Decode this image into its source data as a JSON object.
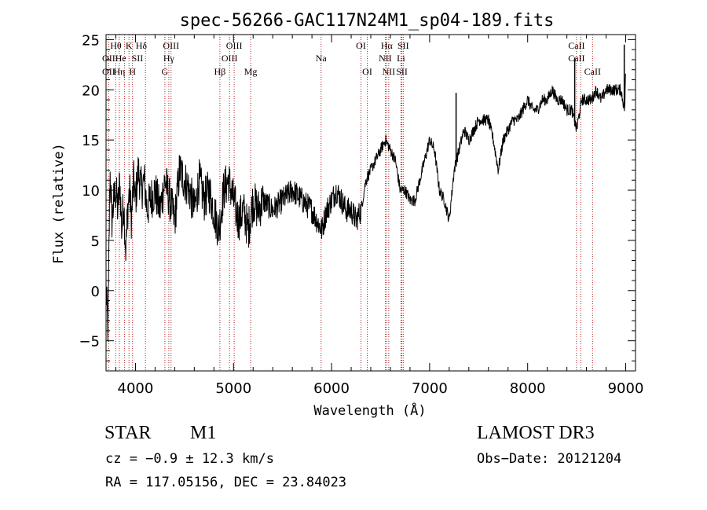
{
  "chart_data": {
    "type": "line",
    "title": "spec-56266-GAC117N24M1_sp04-189.fits",
    "xlabel": "Wavelength (Å)",
    "ylabel": "Flux (relative)",
    "xlim": [
      3700,
      9100
    ],
    "ylim": [
      -8,
      25.5
    ],
    "xticks": [
      4000,
      5000,
      6000,
      7000,
      8000,
      9000
    ],
    "yticks": [
      -5,
      0,
      5,
      10,
      15,
      20,
      25
    ],
    "grid": false,
    "series": [
      {
        "x": [
          3700,
          3720,
          3740,
          3760,
          3780,
          3800,
          3820,
          3840,
          3860,
          3880,
          3900,
          3920,
          3940,
          3960,
          3980,
          4000,
          4030,
          4060,
          4090,
          4120,
          4150,
          4200,
          4250,
          4300,
          4350,
          4400,
          4450,
          4500,
          4550,
          4600,
          4650,
          4700,
          4750,
          4800,
          4850,
          4900,
          4950,
          5000,
          5050,
          5100,
          5150,
          5200,
          5250,
          5300,
          5400,
          5500,
          5600,
          5700,
          5800,
          5850,
          5900,
          5950,
          6000,
          6050,
          6100,
          6150,
          6200,
          6250,
          6300,
          6350,
          6400,
          6450,
          6500,
          6550,
          6600,
          6650,
          6700,
          6750,
          6800,
          6850,
          6900,
          6950,
          7000,
          7050,
          7100,
          7150,
          7200,
          7250,
          7300,
          7350,
          7400,
          7450,
          7500,
          7550,
          7600,
          7650,
          7700,
          7750,
          7800,
          7850,
          7900,
          7950,
          8000,
          8050,
          8100,
          8150,
          8200,
          8250,
          8300,
          8350,
          8400,
          8450,
          8500,
          8550,
          8600,
          8650,
          8700,
          8750,
          8800,
          8850,
          8900,
          8950,
          8990,
          9000
        ],
        "y": [
          0,
          -4,
          12,
          7,
          9,
          10,
          8,
          11,
          6,
          9,
          4,
          8,
          10,
          7,
          11,
          9,
          12,
          10,
          11,
          8,
          9,
          10,
          8,
          11,
          9,
          7,
          12,
          11,
          10,
          8,
          11,
          9,
          10,
          8,
          6,
          10,
          11,
          9,
          7,
          8,
          6,
          9,
          8,
          9,
          8,
          9,
          10,
          9,
          8,
          7,
          6,
          8,
          9,
          10,
          9,
          8,
          8,
          7,
          8,
          11,
          12,
          13,
          14,
          15,
          14,
          13,
          10,
          10,
          9,
          9,
          11,
          13,
          15,
          14,
          10,
          9,
          7,
          12,
          14,
          16,
          15,
          16,
          17,
          17,
          17,
          15,
          12,
          15,
          16,
          17,
          17,
          18,
          19,
          18,
          18,
          19,
          19,
          20,
          19,
          19,
          18,
          18,
          16,
          19,
          19,
          19,
          20,
          19,
          20,
          20,
          20,
          20,
          18,
          22
        ]
      }
    ],
    "spikes": [
      {
        "x": 7270,
        "y": 19.7
      },
      {
        "x": 8480,
        "y": 23.2
      },
      {
        "x": 8985,
        "y": 24.5
      }
    ],
    "line_markers": {
      "color": "#b22222",
      "wavelengths": [
        3727,
        3798,
        3835,
        3889,
        3934,
        3970,
        4102,
        4300,
        4340,
        4363,
        4861,
        4959,
        5007,
        5175,
        5893,
        6300,
        6364,
        6548,
        6563,
        6583,
        6708,
        6717,
        6731,
        8498,
        8542,
        8662
      ]
    },
    "line_labels": [
      {
        "text": "Hθ",
        "x": 3800,
        "row": 1
      },
      {
        "text": "K",
        "x": 3934,
        "row": 1
      },
      {
        "text": "Hδ",
        "x": 4060,
        "row": 1
      },
      {
        "text": "OIII",
        "x": 4363,
        "row": 1
      },
      {
        "text": "OIII",
        "x": 5007,
        "row": 1
      },
      {
        "text": "OI",
        "x": 6300,
        "row": 1
      },
      {
        "text": "Hα",
        "x": 6563,
        "row": 1
      },
      {
        "text": "SII",
        "x": 6731,
        "row": 1
      },
      {
        "text": "CaII",
        "x": 8498,
        "row": 1
      },
      {
        "text": "OII",
        "x": 3727,
        "row": 2
      },
      {
        "text": "He",
        "x": 3850,
        "row": 2
      },
      {
        "text": "SII",
        "x": 4020,
        "row": 2
      },
      {
        "text": "Hγ",
        "x": 4340,
        "row": 2
      },
      {
        "text": "OIII",
        "x": 4959,
        "row": 2
      },
      {
        "text": "Na",
        "x": 5893,
        "row": 2
      },
      {
        "text": "NII",
        "x": 6548,
        "row": 2
      },
      {
        "text": "Li",
        "x": 6708,
        "row": 2
      },
      {
        "text": "CaII",
        "x": 8498,
        "row": 2
      },
      {
        "text": "OII",
        "x": 3727,
        "row": 3
      },
      {
        "text": "Hη",
        "x": 3835,
        "row": 3
      },
      {
        "text": "H",
        "x": 3970,
        "row": 3
      },
      {
        "text": "G",
        "x": 4300,
        "row": 3
      },
      {
        "text": "Hβ",
        "x": 4861,
        "row": 3
      },
      {
        "text": "Mg",
        "x": 5175,
        "row": 3
      },
      {
        "text": "OI",
        "x": 6364,
        "row": 3
      },
      {
        "text": "NII",
        "x": 6583,
        "row": 3
      },
      {
        "text": "SII",
        "x": 6717,
        "row": 3
      },
      {
        "text": "CaII",
        "x": 8662,
        "row": 3
      }
    ]
  },
  "info": {
    "class": "STAR",
    "subclass": "M1",
    "survey": "LAMOST DR3",
    "cz": "cz = −0.9 ± 12.3 km/s",
    "obs_date": "Obs−Date: 20121204",
    "radec": "RA = 117.05156, DEC =  23.84023"
  },
  "colors": {
    "spectrum": "#000000",
    "markers": "#b22222",
    "frame": "#000000"
  }
}
